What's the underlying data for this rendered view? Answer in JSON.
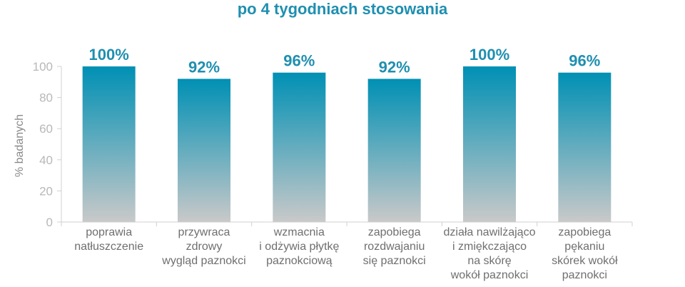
{
  "chart_data": {
    "type": "bar",
    "title": "po 4 tygodniach stosowania",
    "ylabel": "% badanych",
    "xlabel": "",
    "ylim": [
      0,
      100
    ],
    "yticks": [
      0,
      20,
      40,
      60,
      80,
      100
    ],
    "grid": false,
    "categories": [
      [
        "poprawia",
        "natłuszczenie"
      ],
      [
        "przywraca",
        "zdrowy",
        "wygląd paznokci"
      ],
      [
        "wzmacnia",
        "i odżywia płytkę",
        "paznokciową"
      ],
      [
        "zapobiega",
        "rozdwajaniu",
        "się paznokci"
      ],
      [
        "działa nawilżająco",
        "i zmiękczająco",
        "na skórę",
        "wokół paznokci"
      ],
      [
        "zapobiega",
        "pękaniu",
        "skórek wokół",
        "paznokci"
      ]
    ],
    "values": [
      100,
      92,
      96,
      92,
      100,
      96
    ],
    "data_labels": [
      "100%",
      "92%",
      "96%",
      "92%",
      "100%",
      "96%"
    ],
    "colors": {
      "bar_top": "#0090b4",
      "bar_bottom": "#c9c9c9",
      "label": "#1f8fb0",
      "axis": "#d0d0d0"
    }
  }
}
